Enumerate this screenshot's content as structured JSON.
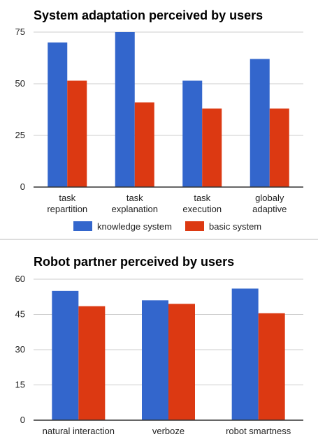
{
  "colors": {
    "knowledge": "#3366cc",
    "basic": "#dc3912",
    "grid": "#cccccc",
    "axis": "#333333"
  },
  "chart_data": [
    {
      "type": "bar",
      "title": "System adaptation perceived by users",
      "categories": [
        [
          "task",
          "repartition"
        ],
        [
          "task",
          "explanation"
        ],
        [
          "task",
          "execution"
        ],
        [
          "globaly",
          "adaptive"
        ]
      ],
      "series": [
        {
          "name": "knowledge system",
          "color": "#3366cc",
          "values": [
            70,
            75,
            51.5,
            62
          ]
        },
        {
          "name": "basic system",
          "color": "#dc3912",
          "values": [
            51.5,
            41,
            38,
            38
          ]
        }
      ],
      "ylim": [
        0,
        75
      ],
      "yticks": [
        0,
        25,
        50,
        75
      ],
      "grid": true,
      "legend": "bottom",
      "xlabel": "",
      "ylabel": ""
    },
    {
      "type": "bar",
      "title": "Robot partner perceived by users",
      "categories": [
        [
          "natural interaction"
        ],
        [
          "verboze"
        ],
        [
          "robot smartness"
        ]
      ],
      "series": [
        {
          "name": "knowledge system",
          "color": "#3366cc",
          "values": [
            55,
            51,
            56
          ]
        },
        {
          "name": "basic system",
          "color": "#dc3912",
          "values": [
            48.5,
            49.5,
            45.5
          ]
        }
      ],
      "ylim": [
        0,
        60
      ],
      "yticks": [
        0,
        15,
        30,
        45,
        60
      ],
      "grid": true,
      "legend": "none",
      "xlabel": "",
      "ylabel": ""
    }
  ]
}
